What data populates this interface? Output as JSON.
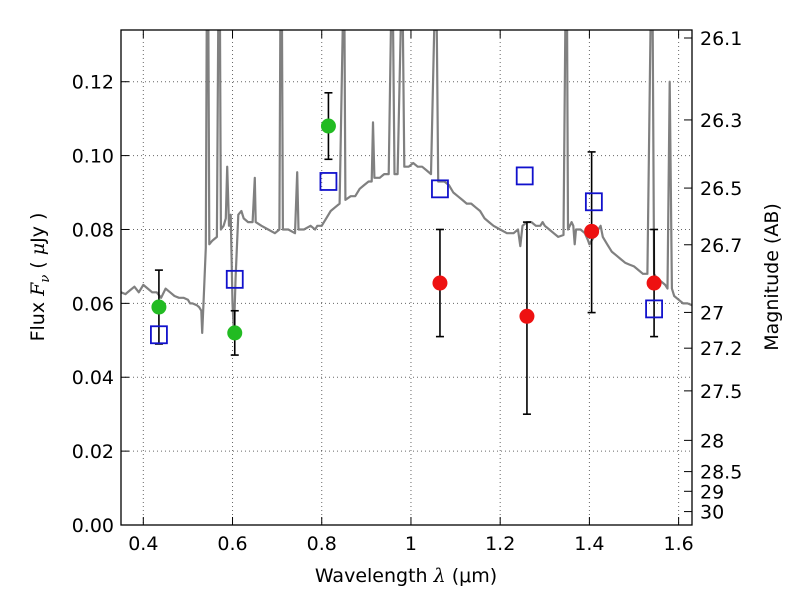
{
  "chart_data": {
    "type": "scatter",
    "xlabel": "Wavelength  λ (μm)",
    "xlabel_parts": {
      "pre": "Wavelength  ",
      "sym": "λ",
      "post": " (μm)"
    },
    "ylabel": "Flux  Fν  ( μJy )",
    "ylabel_parts": {
      "pre": "Flux  ",
      "sym": "F",
      "sub": "ν",
      "post": "  ( ",
      "mu": "μ",
      "end": "Jy )"
    },
    "y2label": "Magnitude (AB)",
    "xlim": [
      0.35,
      1.63
    ],
    "ylim": [
      0.0,
      0.134
    ],
    "grid": true,
    "x_ticks": [
      0.4,
      0.6,
      0.8,
      1.0,
      1.2,
      1.4,
      1.6
    ],
    "x_tick_labels": [
      "0.4",
      "0.6",
      "0.8",
      "1",
      "1.2",
      "1.4",
      "1.6"
    ],
    "y_ticks": [
      0.0,
      0.02,
      0.04,
      0.06,
      0.08,
      0.1,
      0.12
    ],
    "y_tick_labels": [
      "0.00",
      "0.02",
      "0.04",
      "0.06",
      "0.08",
      "0.10",
      "0.12"
    ],
    "mag_ticks": [
      "26.1",
      "26.3",
      "26.5",
      "26.7",
      "27",
      "27.2",
      "27.5",
      "28",
      "28.5",
      "29",
      "30"
    ],
    "colors": {
      "green": "#22bb22",
      "red": "#ee1111",
      "blue": "#1111cc",
      "spectrum": "#808080",
      "error": "#000000"
    },
    "series": [
      {
        "marker": "circle",
        "color": "#22bb22",
        "points": [
          {
            "x": 0.435,
            "y": 0.059,
            "err_lo": 0.049,
            "err_hi": 0.069
          },
          {
            "x": 0.605,
            "y": 0.052,
            "err_lo": 0.046,
            "err_hi": 0.058
          },
          {
            "x": 0.815,
            "y": 0.108,
            "err_lo": 0.099,
            "err_hi": 0.117
          }
        ]
      },
      {
        "marker": "circle",
        "color": "#ee1111",
        "points": [
          {
            "x": 1.065,
            "y": 0.0655,
            "err_lo": 0.051,
            "err_hi": 0.08
          },
          {
            "x": 1.26,
            "y": 0.0565,
            "err_lo": 0.03,
            "err_hi": 0.082
          },
          {
            "x": 1.405,
            "y": 0.0795,
            "err_lo": 0.0575,
            "err_hi": 0.101
          },
          {
            "x": 1.545,
            "y": 0.0655,
            "err_lo": 0.051,
            "err_hi": 0.08
          }
        ]
      },
      {
        "marker": "square-open",
        "color": "#1111cc",
        "points": [
          {
            "x": 0.435,
            "y": 0.0515
          },
          {
            "x": 0.605,
            "y": 0.0665
          },
          {
            "x": 0.815,
            "y": 0.093
          },
          {
            "x": 1.065,
            "y": 0.091
          },
          {
            "x": 1.255,
            "y": 0.0945
          },
          {
            "x": 1.41,
            "y": 0.0875
          },
          {
            "x": 1.545,
            "y": 0.0585
          }
        ]
      }
    ],
    "spectrum": {
      "color": "#808080",
      "points": [
        [
          0.35,
          0.063
        ],
        [
          0.36,
          0.0625
        ],
        [
          0.37,
          0.0635
        ],
        [
          0.38,
          0.0645
        ],
        [
          0.39,
          0.063
        ],
        [
          0.4,
          0.065
        ],
        [
          0.41,
          0.064
        ],
        [
          0.42,
          0.063
        ],
        [
          0.43,
          0.063
        ],
        [
          0.44,
          0.0615
        ],
        [
          0.45,
          0.064
        ],
        [
          0.46,
          0.063
        ],
        [
          0.47,
          0.062
        ],
        [
          0.48,
          0.0615
        ],
        [
          0.49,
          0.0615
        ],
        [
          0.5,
          0.061
        ],
        [
          0.505,
          0.06
        ],
        [
          0.51,
          0.06
        ],
        [
          0.52,
          0.0595
        ],
        [
          0.525,
          0.059
        ],
        [
          0.53,
          0.058
        ],
        [
          0.532,
          0.052
        ],
        [
          0.535,
          0.06
        ],
        [
          0.54,
          0.075
        ],
        [
          0.542,
          0.134
        ],
        [
          0.546,
          0.134
        ],
        [
          0.548,
          0.076
        ],
        [
          0.555,
          0.077
        ],
        [
          0.565,
          0.078
        ],
        [
          0.568,
          0.134
        ],
        [
          0.572,
          0.134
        ],
        [
          0.574,
          0.08
        ],
        [
          0.58,
          0.081
        ],
        [
          0.585,
          0.083
        ],
        [
          0.588,
          0.097
        ],
        [
          0.592,
          0.081
        ],
        [
          0.596,
          0.084
        ],
        [
          0.6,
          0.06
        ],
        [
          0.603,
          0.052
        ],
        [
          0.607,
          0.067
        ],
        [
          0.613,
          0.084
        ],
        [
          0.62,
          0.085
        ],
        [
          0.625,
          0.083
        ],
        [
          0.635,
          0.082
        ],
        [
          0.645,
          0.082
        ],
        [
          0.65,
          0.094
        ],
        [
          0.652,
          0.082
        ],
        [
          0.665,
          0.081
        ],
        [
          0.68,
          0.08
        ],
        [
          0.695,
          0.079
        ],
        [
          0.705,
          0.08
        ],
        [
          0.707,
          0.134
        ],
        [
          0.711,
          0.134
        ],
        [
          0.713,
          0.08
        ],
        [
          0.725,
          0.08
        ],
        [
          0.74,
          0.079
        ],
        [
          0.745,
          0.0955
        ],
        [
          0.748,
          0.08
        ],
        [
          0.76,
          0.08
        ],
        [
          0.775,
          0.081
        ],
        [
          0.785,
          0.08
        ],
        [
          0.79,
          0.081
        ],
        [
          0.8,
          0.081
        ],
        [
          0.81,
          0.083
        ],
        [
          0.82,
          0.085
        ],
        [
          0.83,
          0.086
        ],
        [
          0.84,
          0.087
        ],
        [
          0.847,
          0.134
        ],
        [
          0.851,
          0.134
        ],
        [
          0.853,
          0.088
        ],
        [
          0.865,
          0.089
        ],
        [
          0.875,
          0.089
        ],
        [
          0.885,
          0.091
        ],
        [
          0.895,
          0.092
        ],
        [
          0.905,
          0.093
        ],
        [
          0.912,
          0.093
        ],
        [
          0.915,
          0.109
        ],
        [
          0.918,
          0.094
        ],
        [
          0.93,
          0.094
        ],
        [
          0.94,
          0.095
        ],
        [
          0.95,
          0.095
        ],
        [
          0.955,
          0.134
        ],
        [
          0.96,
          0.134
        ],
        [
          0.963,
          0.095
        ],
        [
          0.97,
          0.095
        ],
        [
          0.977,
          0.134
        ],
        [
          0.982,
          0.134
        ],
        [
          0.985,
          0.097
        ],
        [
          0.995,
          0.097
        ],
        [
          1.005,
          0.098
        ],
        [
          1.015,
          0.097
        ],
        [
          1.025,
          0.097
        ],
        [
          1.035,
          0.096
        ],
        [
          1.045,
          0.095
        ],
        [
          1.052,
          0.134
        ],
        [
          1.058,
          0.134
        ],
        [
          1.061,
          0.093
        ],
        [
          1.075,
          0.093
        ],
        [
          1.085,
          0.092
        ],
        [
          1.095,
          0.09
        ],
        [
          1.105,
          0.089
        ],
        [
          1.115,
          0.088
        ],
        [
          1.125,
          0.087
        ],
        [
          1.135,
          0.087
        ],
        [
          1.145,
          0.086
        ],
        [
          1.155,
          0.085
        ],
        [
          1.165,
          0.083
        ],
        [
          1.175,
          0.082
        ],
        [
          1.185,
          0.081
        ],
        [
          1.2,
          0.08
        ],
        [
          1.215,
          0.079
        ],
        [
          1.23,
          0.079
        ],
        [
          1.24,
          0.08
        ],
        [
          1.245,
          0.0755
        ],
        [
          1.25,
          0.081
        ],
        [
          1.26,
          0.082
        ],
        [
          1.27,
          0.082
        ],
        [
          1.28,
          0.081
        ],
        [
          1.285,
          0.081
        ],
        [
          1.29,
          0.081
        ],
        [
          1.295,
          0.082
        ],
        [
          1.3,
          0.081
        ],
        [
          1.31,
          0.08
        ],
        [
          1.32,
          0.079
        ],
        [
          1.33,
          0.078
        ],
        [
          1.342,
          0.0785
        ],
        [
          1.346,
          0.134
        ],
        [
          1.35,
          0.134
        ],
        [
          1.352,
          0.08
        ],
        [
          1.36,
          0.082
        ],
        [
          1.364,
          0.081
        ],
        [
          1.367,
          0.076
        ],
        [
          1.37,
          0.08
        ],
        [
          1.38,
          0.08
        ],
        [
          1.39,
          0.079
        ],
        [
          1.397,
          0.077
        ],
        [
          1.4,
          0.076
        ],
        [
          1.41,
          0.078
        ],
        [
          1.42,
          0.08
        ],
        [
          1.425,
          0.081
        ],
        [
          1.43,
          0.078
        ],
        [
          1.44,
          0.076
        ],
        [
          1.45,
          0.074
        ],
        [
          1.46,
          0.073
        ],
        [
          1.47,
          0.072
        ],
        [
          1.48,
          0.071
        ],
        [
          1.49,
          0.0705
        ],
        [
          1.5,
          0.07
        ],
        [
          1.51,
          0.069
        ],
        [
          1.52,
          0.068
        ],
        [
          1.53,
          0.068
        ],
        [
          1.537,
          0.134
        ],
        [
          1.542,
          0.134
        ],
        [
          1.545,
          0.068
        ],
        [
          1.55,
          0.067
        ],
        [
          1.56,
          0.066
        ],
        [
          1.57,
          0.065
        ],
        [
          1.575,
          0.064
        ],
        [
          1.58,
          0.12
        ],
        [
          1.585,
          0.064
        ],
        [
          1.59,
          0.062
        ],
        [
          1.6,
          0.061
        ],
        [
          1.61,
          0.06
        ],
        [
          1.62,
          0.06
        ],
        [
          1.63,
          0.0595
        ]
      ]
    }
  }
}
